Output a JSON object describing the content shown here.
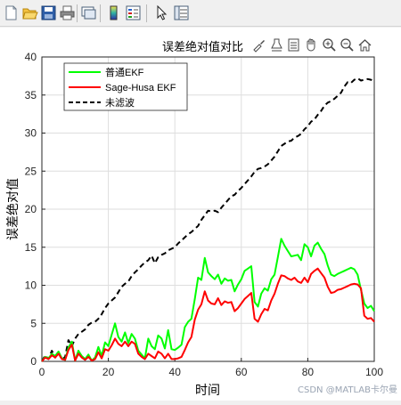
{
  "toolbar": {
    "icons": [
      "new-figure-icon",
      "open-file-icon",
      "save-icon",
      "print-icon",
      "link-plot-icon",
      "colorbar-icon",
      "legend-icon",
      "pointer-icon",
      "property-inspector-icon"
    ]
  },
  "axes_toolbar": {
    "icons": [
      "brush-icon",
      "data-tips-icon",
      "restore-view-icon",
      "pan-icon",
      "zoom-in-icon",
      "zoom-out-icon",
      "home-icon"
    ]
  },
  "watermark": "CSDN @MATLAB卡尔曼",
  "colors": {
    "kf": "#00ff00",
    "sh": "#ff0000",
    "raw": "#000000",
    "grid": "#dedede"
  },
  "chart_data": {
    "type": "line",
    "title": "误差绝对值对比",
    "xlabel": "时间",
    "ylabel": "误差绝对值",
    "xlim": [
      0,
      100
    ],
    "ylim": [
      0,
      40
    ],
    "xticks": [
      "0",
      "20",
      "40",
      "60",
      "80",
      "100"
    ],
    "yticks": [
      "0",
      "5",
      "10",
      "15",
      "20",
      "25",
      "30",
      "35",
      "40"
    ],
    "grid": true,
    "legend_position": "top-left",
    "series": [
      {
        "name": "普通EKF",
        "color": "#00ff00",
        "style": "solid",
        "x": [
          0,
          1,
          2,
          3,
          4,
          5,
          6,
          7,
          8,
          9,
          10,
          11,
          12,
          13,
          14,
          15,
          16,
          17,
          18,
          19,
          20,
          21,
          22,
          23,
          24,
          25,
          26,
          27,
          28,
          29,
          30,
          31,
          32,
          33,
          34,
          35,
          36,
          37,
          38,
          39,
          40,
          41,
          42,
          43,
          44,
          45,
          46,
          47,
          48,
          49,
          50,
          51,
          52,
          53,
          54,
          55,
          56,
          57,
          58,
          59,
          60,
          61,
          62,
          63,
          64,
          65,
          66,
          67,
          68,
          69,
          70,
          71,
          72,
          73,
          74,
          75,
          76,
          77,
          78,
          79,
          80,
          81,
          82,
          83,
          84,
          85,
          86,
          87,
          88,
          89,
          90,
          91,
          92,
          93,
          94,
          95,
          96,
          97,
          98,
          99,
          100
        ],
        "y": [
          0,
          0.6,
          0.4,
          1.0,
          0.7,
          1.3,
          0.4,
          0.2,
          1.8,
          2.6,
          0.1,
          1.4,
          0.7,
          0.3,
          0.9,
          0.1,
          0.5,
          1.9,
          0.7,
          2.5,
          2.0,
          3.5,
          5.0,
          3.2,
          2.6,
          3.8,
          2.4,
          3.6,
          3.0,
          1.4,
          0.9,
          0.4,
          3.0,
          2.0,
          1.6,
          3.4,
          3.0,
          1.7,
          4.1,
          1.6,
          1.5,
          1.8,
          2.2,
          4.5,
          5.2,
          5.6,
          8.2,
          11.0,
          10.7,
          13.6,
          11.7,
          11.2,
          10.8,
          11.4,
          10.2,
          10.9,
          10.6,
          10.7,
          9.2,
          10.1,
          10.8,
          11.9,
          12.2,
          12.5,
          7.8,
          7.2,
          8.9,
          9.6,
          9.3,
          10.8,
          11.4,
          13.7,
          16.1,
          15.2,
          14.5,
          13.8,
          13.9,
          14.0,
          13.3,
          15.4,
          15.0,
          13.8,
          15.2,
          15.6,
          14.8,
          14.1,
          12.6,
          11.4,
          11.2,
          11.5,
          11.7,
          11.9,
          12.1,
          12.3,
          12.1,
          11.4,
          9.4,
          7.6,
          7.0,
          7.3,
          6.6
        ]
      },
      {
        "name": "Sage-Husa EKF",
        "color": "#ff0000",
        "style": "solid",
        "x": [
          0,
          1,
          2,
          3,
          4,
          5,
          6,
          7,
          8,
          9,
          10,
          11,
          12,
          13,
          14,
          15,
          16,
          17,
          18,
          19,
          20,
          21,
          22,
          23,
          24,
          25,
          26,
          27,
          28,
          29,
          30,
          31,
          32,
          33,
          34,
          35,
          36,
          37,
          38,
          39,
          40,
          41,
          42,
          43,
          44,
          45,
          46,
          47,
          48,
          49,
          50,
          51,
          52,
          53,
          54,
          55,
          56,
          57,
          58,
          59,
          60,
          61,
          62,
          63,
          64,
          65,
          66,
          67,
          68,
          69,
          70,
          71,
          72,
          73,
          74,
          75,
          76,
          77,
          78,
          79,
          80,
          81,
          82,
          83,
          84,
          85,
          86,
          87,
          88,
          89,
          90,
          91,
          92,
          93,
          94,
          95,
          96,
          97,
          98,
          99,
          100
        ],
        "y": [
          0,
          0.5,
          0.3,
          0.8,
          0.5,
          1.0,
          0.3,
          0.2,
          1.5,
          2.2,
          0.1,
          1.0,
          0.5,
          0.2,
          0.6,
          0.1,
          0.3,
          1.2,
          0.4,
          1.6,
          1.4,
          2.1,
          3.0,
          2.3,
          2.0,
          2.6,
          2.0,
          2.6,
          2.3,
          1.0,
          0.6,
          0.3,
          1.0,
          0.7,
          0.4,
          1.3,
          1.0,
          0.4,
          1.0,
          0.3,
          0.3,
          0.4,
          0.6,
          1.5,
          2.5,
          3.2,
          5.5,
          6.8,
          7.5,
          9.2,
          8.0,
          7.6,
          7.5,
          8.3,
          7.4,
          7.9,
          7.7,
          7.8,
          6.6,
          7.0,
          7.6,
          8.2,
          8.6,
          9.0,
          5.6,
          5.2,
          6.2,
          6.9,
          6.7,
          8.0,
          8.9,
          10.2,
          11.3,
          11.2,
          10.9,
          10.7,
          11.0,
          10.5,
          10.3,
          11.0,
          10.4,
          11.5,
          11.9,
          12.2,
          11.6,
          11.0,
          9.8,
          9.0,
          9.1,
          9.4,
          9.5,
          9.7,
          9.9,
          10.1,
          10.2,
          10.1,
          9.6,
          6.0,
          5.6,
          5.7,
          5.2
        ]
      },
      {
        "name": "未滤波",
        "color": "#000000",
        "style": "dashed",
        "x": [
          0,
          1,
          2,
          3,
          4,
          5,
          6,
          7,
          8,
          9,
          10,
          11,
          12,
          13,
          14,
          15,
          16,
          17,
          18,
          19,
          20,
          21,
          22,
          23,
          24,
          25,
          26,
          27,
          28,
          29,
          30,
          31,
          32,
          33,
          34,
          35,
          36,
          37,
          38,
          39,
          40,
          41,
          42,
          43,
          44,
          45,
          46,
          47,
          48,
          49,
          50,
          51,
          52,
          53,
          54,
          55,
          56,
          57,
          58,
          59,
          60,
          61,
          62,
          63,
          64,
          65,
          66,
          67,
          68,
          69,
          70,
          71,
          72,
          73,
          74,
          75,
          76,
          77,
          78,
          79,
          80,
          81,
          82,
          83,
          84,
          85,
          86,
          87,
          88,
          89,
          90,
          91,
          92,
          93,
          94,
          95,
          96,
          97,
          98,
          99,
          100
        ],
        "y": [
          0,
          0.8,
          0.3,
          1.4,
          0.5,
          1.2,
          0.2,
          0.6,
          2.8,
          2.0,
          3.0,
          3.6,
          3.9,
          4.2,
          4.8,
          5.1,
          5.2,
          5.6,
          6.2,
          7.0,
          7.6,
          8.0,
          8.4,
          9.1,
          9.8,
          10.2,
          10.5,
          11.2,
          11.7,
          12.1,
          12.6,
          13.0,
          13.3,
          13.9,
          12.9,
          13.7,
          14.0,
          14.2,
          14.6,
          14.8,
          15.0,
          15.5,
          15.9,
          16.3,
          16.7,
          17.0,
          17.4,
          17.8,
          18.6,
          19.2,
          19.8,
          19.7,
          19.8,
          19.6,
          20.2,
          20.7,
          21.2,
          21.7,
          21.9,
          22.4,
          22.8,
          23.3,
          23.8,
          24.3,
          24.9,
          25.3,
          25.4,
          25.6,
          25.9,
          26.4,
          26.9,
          27.6,
          28.3,
          28.6,
          28.9,
          29.0,
          29.4,
          29.6,
          29.9,
          30.5,
          30.9,
          31.5,
          31.8,
          32.4,
          32.9,
          33.6,
          34.0,
          34.2,
          34.5,
          34.9,
          35.3,
          36.1,
          36.7,
          36.6,
          37.0,
          37.2,
          36.9,
          37.0,
          37.1,
          37.0,
          36.8
        ]
      }
    ]
  }
}
